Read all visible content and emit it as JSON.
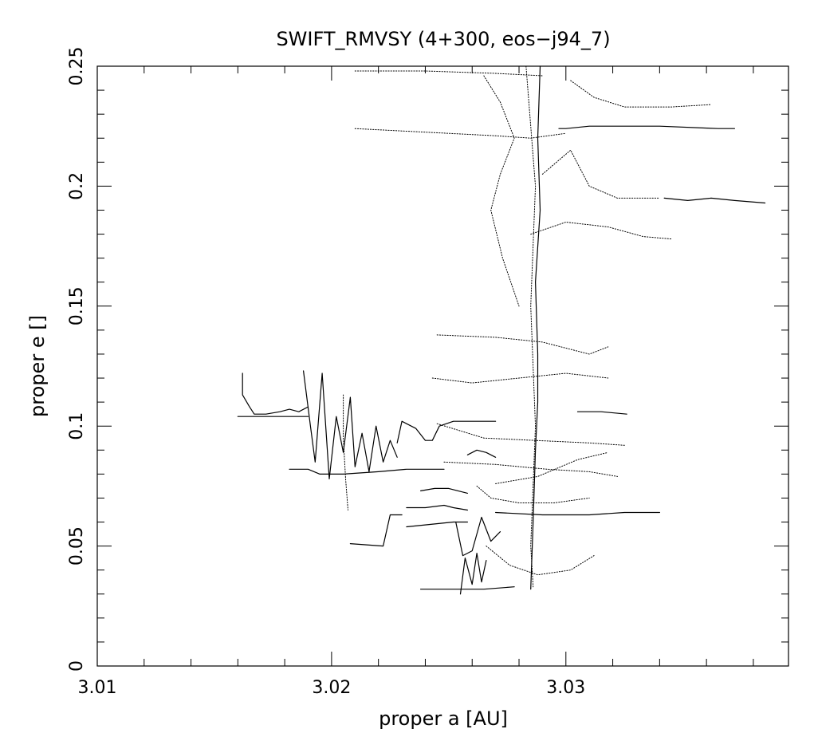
{
  "chart_data": {
    "type": "scatter",
    "title": "SWIFT_RMVSY (4+300, eos−j94_7)",
    "xlabel": "proper a [AU]",
    "ylabel": "proper e []",
    "xlim": [
      3.01,
      3.0395
    ],
    "ylim": [
      0,
      0.25
    ],
    "x_ticks": [
      {
        "value": 3.01,
        "label": "3.01"
      },
      {
        "value": 3.02,
        "label": "3.02"
      },
      {
        "value": 3.03,
        "label": "3.03"
      }
    ],
    "y_ticks": [
      {
        "value": 0,
        "label": "0"
      },
      {
        "value": 0.05,
        "label": "0.05"
      },
      {
        "value": 0.1,
        "label": "0.1"
      },
      {
        "value": 0.15,
        "label": "0.15"
      },
      {
        "value": 0.2,
        "label": "0.2"
      },
      {
        "value": 0.25,
        "label": "0.25"
      }
    ],
    "x_minor_step": 0.002,
    "y_minor_step": 0.01,
    "grid": false,
    "legend": "none",
    "colors": {
      "background": "#ffffff",
      "ink": "#000000"
    },
    "series": [
      {
        "style": "solid",
        "points": [
          [
            3.0162,
            0.122
          ],
          [
            3.0162,
            0.113
          ],
          [
            3.0165,
            0.108
          ],
          [
            3.0167,
            0.105
          ],
          [
            3.0172,
            0.105
          ],
          [
            3.0178,
            0.106
          ],
          [
            3.0182,
            0.107
          ],
          [
            3.0186,
            0.106
          ],
          [
            3.019,
            0.108
          ]
        ]
      },
      {
        "style": "solid",
        "points": [
          [
            3.016,
            0.104
          ],
          [
            3.0175,
            0.104
          ],
          [
            3.0185,
            0.104
          ],
          [
            3.019,
            0.104
          ]
        ]
      },
      {
        "style": "solid",
        "points": [
          [
            3.0182,
            0.082
          ],
          [
            3.019,
            0.082
          ],
          [
            3.0195,
            0.08
          ],
          [
            3.0205,
            0.08
          ],
          [
            3.022,
            0.081
          ],
          [
            3.0232,
            0.082
          ],
          [
            3.0248,
            0.082
          ]
        ]
      },
      {
        "style": "solid",
        "points": [
          [
            3.0188,
            0.123
          ],
          [
            3.0191,
            0.1
          ],
          [
            3.0193,
            0.085
          ],
          [
            3.0196,
            0.122
          ],
          [
            3.0199,
            0.078
          ],
          [
            3.0202,
            0.104
          ],
          [
            3.0205,
            0.089
          ],
          [
            3.0208,
            0.112
          ],
          [
            3.021,
            0.083
          ],
          [
            3.0213,
            0.097
          ],
          [
            3.0216,
            0.081
          ],
          [
            3.0219,
            0.1
          ],
          [
            3.0222,
            0.085
          ],
          [
            3.0225,
            0.094
          ],
          [
            3.0228,
            0.087
          ]
        ]
      },
      {
        "style": "solid",
        "points": [
          [
            3.0228,
            0.093
          ],
          [
            3.023,
            0.102
          ],
          [
            3.0232,
            0.101
          ],
          [
            3.0236,
            0.099
          ],
          [
            3.024,
            0.094
          ],
          [
            3.0243,
            0.094
          ],
          [
            3.0246,
            0.1
          ],
          [
            3.0252,
            0.102
          ],
          [
            3.026,
            0.102
          ],
          [
            3.027,
            0.102
          ]
        ]
      },
      {
        "style": "solid",
        "points": [
          [
            3.0238,
            0.073
          ],
          [
            3.0244,
            0.074
          ],
          [
            3.025,
            0.074
          ],
          [
            3.0258,
            0.072
          ]
        ]
      },
      {
        "style": "solid",
        "points": [
          [
            3.0232,
            0.066
          ],
          [
            3.024,
            0.066
          ],
          [
            3.0248,
            0.067
          ],
          [
            3.0252,
            0.066
          ],
          [
            3.0258,
            0.065
          ]
        ]
      },
      {
        "style": "solid",
        "points": [
          [
            3.0232,
            0.058
          ],
          [
            3.0242,
            0.059
          ],
          [
            3.0252,
            0.06
          ],
          [
            3.0258,
            0.06
          ]
        ]
      },
      {
        "style": "solid",
        "points": [
          [
            3.0208,
            0.051
          ],
          [
            3.0222,
            0.05
          ],
          [
            3.0225,
            0.063
          ],
          [
            3.023,
            0.063
          ]
        ]
      },
      {
        "style": "solid",
        "points": [
          [
            3.0238,
            0.032
          ],
          [
            3.0255,
            0.032
          ],
          [
            3.0265,
            0.032
          ],
          [
            3.0278,
            0.033
          ]
        ]
      },
      {
        "style": "solid",
        "points": [
          [
            3.0255,
            0.03
          ],
          [
            3.0257,
            0.045
          ],
          [
            3.026,
            0.034
          ],
          [
            3.0262,
            0.047
          ],
          [
            3.0264,
            0.035
          ],
          [
            3.0266,
            0.044
          ]
        ]
      },
      {
        "style": "solid",
        "points": [
          [
            3.0253,
            0.06
          ],
          [
            3.0256,
            0.046
          ],
          [
            3.026,
            0.048
          ],
          [
            3.0264,
            0.062
          ],
          [
            3.0268,
            0.052
          ],
          [
            3.0272,
            0.056
          ]
        ]
      },
      {
        "style": "solid",
        "points": [
          [
            3.027,
            0.064
          ],
          [
            3.029,
            0.063
          ],
          [
            3.031,
            0.063
          ],
          [
            3.0325,
            0.064
          ],
          [
            3.034,
            0.064
          ]
        ]
      },
      {
        "style": "solid",
        "points": [
          [
            3.0258,
            0.088
          ],
          [
            3.0262,
            0.09
          ],
          [
            3.0266,
            0.089
          ],
          [
            3.027,
            0.087
          ]
        ]
      },
      {
        "style": "solid",
        "points": [
          [
            3.0285,
            0.032
          ],
          [
            3.0286,
            0.06
          ],
          [
            3.0287,
            0.09
          ],
          [
            3.0288,
            0.11
          ],
          [
            3.0288,
            0.13
          ],
          [
            3.0287,
            0.16
          ],
          [
            3.0289,
            0.19
          ],
          [
            3.0288,
            0.22
          ],
          [
            3.0289,
            0.25
          ]
        ]
      },
      {
        "style": "solid",
        "points": [
          [
            3.0297,
            0.224
          ],
          [
            3.03,
            0.224
          ],
          [
            3.031,
            0.225
          ],
          [
            3.034,
            0.225
          ],
          [
            3.0365,
            0.224
          ],
          [
            3.0372,
            0.224
          ]
        ]
      },
      {
        "style": "solid",
        "points": [
          [
            3.0342,
            0.195
          ],
          [
            3.0352,
            0.194
          ],
          [
            3.0362,
            0.195
          ],
          [
            3.0372,
            0.194
          ],
          [
            3.0385,
            0.193
          ]
        ]
      },
      {
        "style": "solid",
        "points": [
          [
            3.0305,
            0.106
          ],
          [
            3.0315,
            0.106
          ],
          [
            3.0326,
            0.105
          ]
        ]
      },
      {
        "style": "dotted",
        "points": [
          [
            3.021,
            0.224
          ],
          [
            3.023,
            0.223
          ],
          [
            3.025,
            0.222
          ],
          [
            3.027,
            0.221
          ],
          [
            3.0285,
            0.22
          ],
          [
            3.03,
            0.222
          ]
        ]
      },
      {
        "style": "dotted",
        "points": [
          [
            3.021,
            0.248
          ],
          [
            3.024,
            0.248
          ],
          [
            3.027,
            0.247
          ],
          [
            3.029,
            0.246
          ]
        ]
      },
      {
        "style": "dotted",
        "points": [
          [
            3.0265,
            0.246
          ],
          [
            3.0272,
            0.235
          ],
          [
            3.0278,
            0.22
          ],
          [
            3.0272,
            0.205
          ],
          [
            3.0268,
            0.19
          ],
          [
            3.0273,
            0.17
          ],
          [
            3.028,
            0.15
          ]
        ]
      },
      {
        "style": "dotted",
        "points": [
          [
            3.0302,
            0.244
          ],
          [
            3.0312,
            0.237
          ],
          [
            3.0325,
            0.233
          ],
          [
            3.0345,
            0.233
          ],
          [
            3.0362,
            0.234
          ]
        ]
      },
      {
        "style": "dotted",
        "points": [
          [
            3.029,
            0.205
          ],
          [
            3.0302,
            0.215
          ],
          [
            3.031,
            0.2
          ],
          [
            3.0322,
            0.195
          ],
          [
            3.033,
            0.195
          ],
          [
            3.034,
            0.195
          ]
        ]
      },
      {
        "style": "dotted",
        "points": [
          [
            3.0285,
            0.18
          ],
          [
            3.03,
            0.185
          ],
          [
            3.0318,
            0.183
          ],
          [
            3.0333,
            0.179
          ],
          [
            3.0345,
            0.178
          ]
        ]
      },
      {
        "style": "dotted",
        "points": [
          [
            3.0245,
            0.138
          ],
          [
            3.027,
            0.137
          ],
          [
            3.029,
            0.135
          ],
          [
            3.031,
            0.13
          ],
          [
            3.0318,
            0.133
          ]
        ]
      },
      {
        "style": "dotted",
        "points": [
          [
            3.0243,
            0.12
          ],
          [
            3.026,
            0.118
          ],
          [
            3.028,
            0.12
          ],
          [
            3.03,
            0.122
          ],
          [
            3.0318,
            0.12
          ]
        ]
      },
      {
        "style": "dotted",
        "points": [
          [
            3.0245,
            0.101
          ],
          [
            3.0265,
            0.095
          ],
          [
            3.0287,
            0.094
          ],
          [
            3.031,
            0.093
          ],
          [
            3.0325,
            0.092
          ]
        ]
      },
      {
        "style": "dotted",
        "points": [
          [
            3.0248,
            0.085
          ],
          [
            3.027,
            0.084
          ],
          [
            3.0292,
            0.082
          ],
          [
            3.031,
            0.081
          ],
          [
            3.0322,
            0.079
          ]
        ]
      },
      {
        "style": "dotted",
        "points": [
          [
            3.027,
            0.076
          ],
          [
            3.0288,
            0.079
          ],
          [
            3.0305,
            0.086
          ],
          [
            3.0318,
            0.089
          ]
        ]
      },
      {
        "style": "dotted",
        "points": [
          [
            3.0205,
            0.113
          ],
          [
            3.0205,
            0.095
          ],
          [
            3.0206,
            0.078
          ],
          [
            3.0207,
            0.065
          ]
        ]
      },
      {
        "style": "dotted",
        "points": [
          [
            3.0266,
            0.05
          ],
          [
            3.0276,
            0.042
          ],
          [
            3.0288,
            0.038
          ],
          [
            3.0302,
            0.04
          ],
          [
            3.0312,
            0.046
          ]
        ]
      },
      {
        "style": "dotted",
        "points": [
          [
            3.0262,
            0.075
          ],
          [
            3.0268,
            0.07
          ],
          [
            3.028,
            0.068
          ],
          [
            3.0295,
            0.068
          ],
          [
            3.031,
            0.07
          ]
        ]
      },
      {
        "style": "dotted",
        "points": [
          [
            3.0283,
            0.25
          ],
          [
            3.0287,
            0.2
          ],
          [
            3.0285,
            0.15
          ],
          [
            3.0287,
            0.1
          ],
          [
            3.0285,
            0.05
          ],
          [
            3.0286,
            0.033
          ]
        ]
      }
    ]
  }
}
